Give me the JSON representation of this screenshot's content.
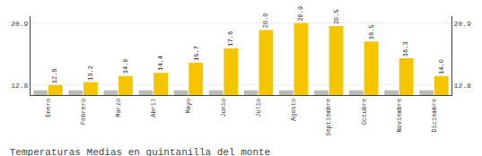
{
  "chart_data": {
    "type": "bar",
    "title": "Temperaturas Medias en quintanilla del monte",
    "categories": [
      "Enero",
      "Febrero",
      "Marzo",
      "Abril",
      "Mayo",
      "Junio",
      "Julio",
      "Agosto",
      "Septiembre",
      "Octubre",
      "Noviembre",
      "Diciembre"
    ],
    "series": [
      {
        "color": "#BCBCB4",
        "values": [
          12.1,
          12.1,
          12.1,
          12.1,
          12.1,
          12.1,
          12.1,
          12.1,
          12.1,
          12.1,
          12.1,
          12.1
        ]
      },
      {
        "color": "#F5C500",
        "values": [
          12.8,
          13.2,
          14.0,
          14.4,
          15.7,
          17.6,
          20.0,
          20.9,
          20.5,
          18.5,
          16.3,
          14.0
        ],
        "value_labels": [
          "12.8",
          "13.2",
          "14.0",
          "14.4",
          "15.7",
          "17.6",
          "20.0",
          "20.9",
          "20.5",
          "18.5",
          "16.3",
          "14.0"
        ],
        "data_labels": true
      }
    ],
    "ylim": [
      11.5,
      21.8
    ],
    "yticks": [
      12.8,
      20.9
    ],
    "y2lim": [
      11.5,
      21.8
    ],
    "y2ticks": [
      12.8,
      20.9
    ],
    "grid": true
  }
}
